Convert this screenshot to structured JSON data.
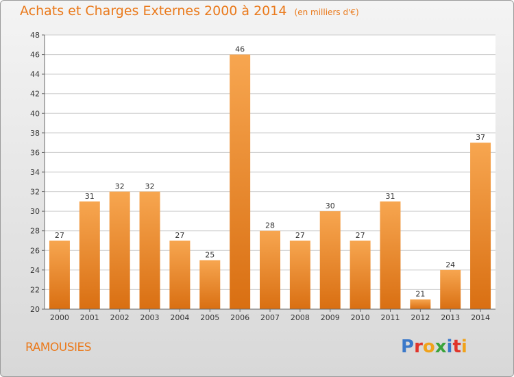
{
  "title": "Achats et Charges Externes 2000 à 2014",
  "unit_note": "(en milliers d'€)",
  "commune": "RAMOUSIES",
  "logo": {
    "text": "Proxiti",
    "colors": [
      "#3a78c9",
      "#e0342a",
      "#f0a21a",
      "#3aa33a",
      "#3a78c9",
      "#e0342a",
      "#f0a21a"
    ]
  },
  "colors": {
    "bar_top": "#f7a650",
    "bar_bottom": "#d96f12",
    "title": "#ea7a1c"
  },
  "chart_data": {
    "type": "bar",
    "categories": [
      "2000",
      "2001",
      "2002",
      "2003",
      "2004",
      "2005",
      "2006",
      "2007",
      "2008",
      "2009",
      "2010",
      "2011",
      "2012",
      "2013",
      "2014"
    ],
    "values": [
      27,
      31,
      32,
      32,
      27,
      25,
      46,
      28,
      27,
      30,
      27,
      31,
      21,
      24,
      37
    ],
    "ylim": [
      20,
      48
    ],
    "yticks": [
      20,
      22,
      24,
      26,
      28,
      30,
      32,
      34,
      36,
      38,
      40,
      42,
      44,
      46,
      48
    ],
    "grid": true,
    "data_labels": true
  }
}
